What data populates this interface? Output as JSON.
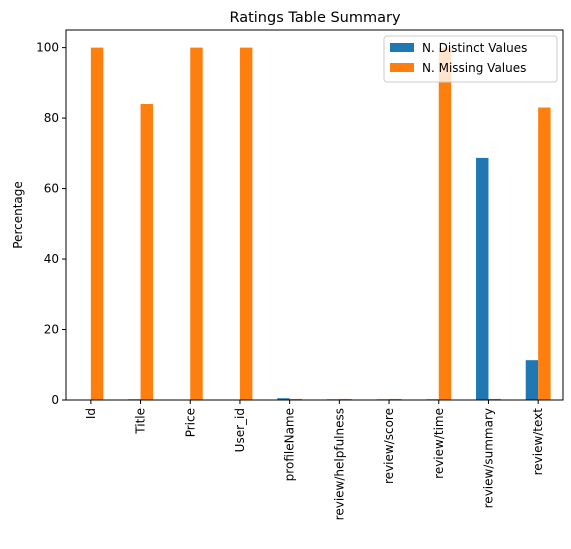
{
  "chart_data": {
    "type": "bar",
    "title": "Ratings Table Summary",
    "xlabel": "",
    "ylabel": "Percentage",
    "categories": [
      "Id",
      "Title",
      "Price",
      "User_id",
      "profileName",
      "review/helpfulness",
      "review/score",
      "review/time",
      "review/summary",
      "review/text"
    ],
    "series": [
      {
        "name": "N. Distinct Values",
        "color": "#1f77b4",
        "values": [
          0.0,
          0.2,
          0.0,
          0.0,
          0.5,
          0.2,
          0.2,
          0.2,
          68.7,
          11.3
        ]
      },
      {
        "name": "N. Missing Values",
        "color": "#ff7f0e",
        "values": [
          100.0,
          84.0,
          100.0,
          100.0,
          0.3,
          0.3,
          0.3,
          100.0,
          0.3,
          83.0
        ]
      }
    ],
    "ylim": [
      0,
      105
    ],
    "yticks": [
      0,
      20,
      40,
      60,
      80,
      100
    ],
    "grid": false,
    "legend_position": "top-right"
  }
}
